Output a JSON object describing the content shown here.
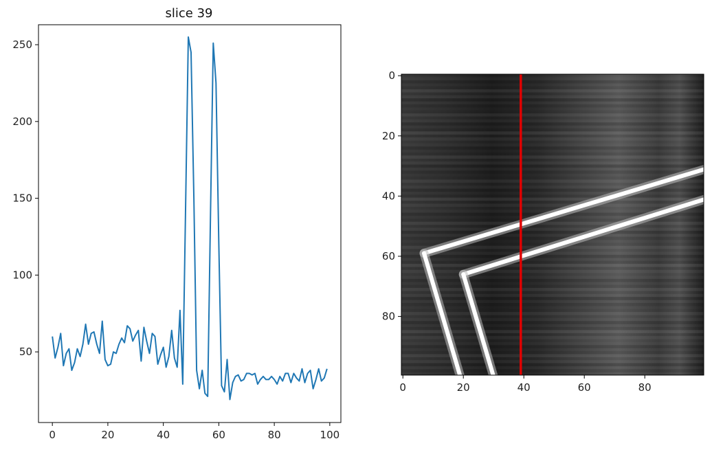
{
  "chart_data": [
    {
      "type": "line",
      "title": "slice 39",
      "xlabel": "",
      "ylabel": "",
      "xlim": [
        -5,
        104
      ],
      "ylim": [
        4,
        263
      ],
      "xticks": [
        0,
        20,
        40,
        60,
        80,
        100
      ],
      "yticks": [
        50,
        100,
        150,
        200,
        250
      ],
      "grid": false,
      "series": [
        {
          "color": "#1f77b4",
          "x": [
            0,
            1,
            2,
            3,
            4,
            5,
            6,
            7,
            8,
            9,
            10,
            11,
            12,
            13,
            14,
            15,
            16,
            17,
            18,
            19,
            20,
            21,
            22,
            23,
            24,
            25,
            26,
            27,
            28,
            29,
            30,
            31,
            32,
            33,
            34,
            35,
            36,
            37,
            38,
            39,
            40,
            41,
            42,
            43,
            44,
            45,
            46,
            47,
            48,
            49,
            50,
            51,
            52,
            53,
            54,
            55,
            56,
            57,
            58,
            59,
            60,
            61,
            62,
            63,
            64,
            65,
            66,
            67,
            68,
            69,
            70,
            71,
            72,
            73,
            74,
            75,
            76,
            77,
            78,
            79,
            80,
            81,
            82,
            83,
            84,
            85,
            86,
            87,
            88,
            89,
            90,
            91,
            92,
            93,
            94,
            95,
            96,
            97,
            98,
            99
          ],
          "y": [
            60,
            46,
            53,
            62,
            41,
            49,
            52,
            38,
            43,
            52,
            47,
            55,
            68,
            55,
            62,
            63,
            55,
            49,
            70,
            45,
            41,
            42,
            50,
            49,
            55,
            59,
            56,
            67,
            65,
            57,
            61,
            64,
            44,
            66,
            57,
            49,
            62,
            60,
            42,
            48,
            53,
            40,
            47,
            64,
            46,
            40,
            77,
            29,
            140,
            255,
            245,
            150,
            38,
            26,
            38,
            23,
            21,
            140,
            251,
            225,
            120,
            28,
            24,
            45,
            19,
            30,
            34,
            35,
            31,
            32,
            36,
            36,
            35,
            36,
            29,
            32,
            34,
            32,
            32,
            34,
            32,
            29,
            34,
            31,
            36,
            36,
            30,
            36,
            33,
            31,
            39,
            30,
            36,
            38,
            26,
            32,
            39,
            31,
            33,
            39
          ]
        }
      ]
    },
    {
      "type": "heatmap",
      "title": "",
      "xlabel": "",
      "ylabel": "",
      "xlim": [
        -0.5,
        99.5
      ],
      "ylim": [
        99.5,
        -0.5
      ],
      "xticks": [
        0,
        20,
        40,
        60,
        80
      ],
      "yticks": [
        0,
        20,
        40,
        60,
        80
      ],
      "colormap": "gray",
      "slice_line": {
        "x": 39,
        "color": "#e00000"
      },
      "bright_lines": [
        {
          "from": [
            100,
            31
          ],
          "to": [
            7,
            59
          ]
        },
        {
          "from": [
            7,
            59
          ],
          "to": [
            19,
            100
          ]
        },
        {
          "from": [
            100,
            41
          ],
          "to": [
            20,
            66
          ]
        },
        {
          "from": [
            20,
            66
          ],
          "to": [
            30,
            100
          ]
        }
      ]
    }
  ]
}
